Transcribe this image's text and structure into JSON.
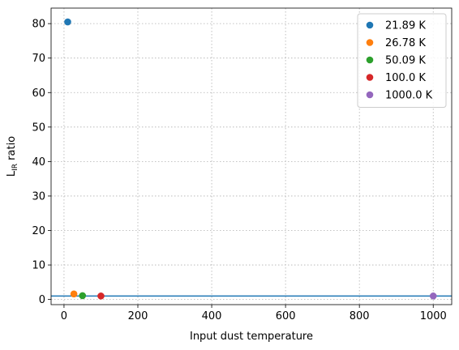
{
  "chart_data": {
    "type": "scatter",
    "title": "",
    "xlabel": "Input dust temperature",
    "ylabel_main": "L",
    "ylabel_sub": "IR",
    "ylabel_suffix": " ratio",
    "xlim": [
      -35,
      1050
    ],
    "ylim": [
      -1.5,
      84.5
    ],
    "xticks": [
      0,
      200,
      400,
      600,
      800,
      1000
    ],
    "yticks": [
      0,
      10,
      20,
      30,
      40,
      50,
      60,
      70,
      80
    ],
    "grid": true,
    "legend_position": "top-right",
    "series": [
      {
        "name": "21.89 K",
        "color": "#1f77b4",
        "points": [
          [
            10,
            80.5
          ]
        ]
      },
      {
        "name": "26.78 K",
        "color": "#ff7f0e",
        "points": [
          [
            26.78,
            1.6
          ]
        ]
      },
      {
        "name": "50.09 K",
        "color": "#2ca02c",
        "points": [
          [
            50.09,
            1.1
          ]
        ]
      },
      {
        "name": "100.0 K",
        "color": "#d62728",
        "points": [
          [
            100.0,
            1.0
          ]
        ]
      },
      {
        "name": "1000.0 K",
        "color": "#9467bd",
        "points": [
          [
            1000.0,
            1.0
          ]
        ]
      }
    ],
    "reference_line": {
      "y": 1.0,
      "color": "#1f77b4"
    }
  }
}
